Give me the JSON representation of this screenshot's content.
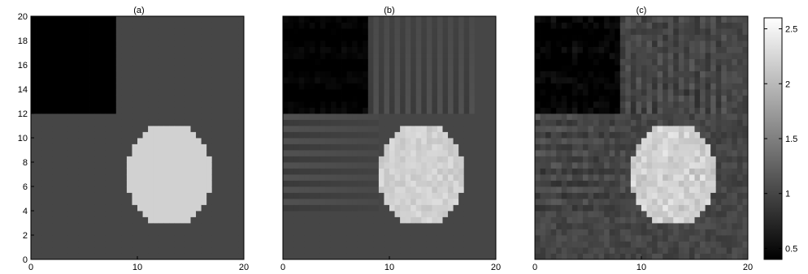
{
  "chart_data": {
    "type": "heatmap",
    "panels": [
      {
        "title": "(a)",
        "variant": "exact"
      },
      {
        "title": "(b)",
        "variant": "reconstruction"
      },
      {
        "title": "(c)",
        "variant": "noisy-reconstruction"
      }
    ],
    "grid_size": 40,
    "xlim": [
      0,
      20
    ],
    "ylim": [
      0,
      20
    ],
    "xticks": [
      "0",
      "10",
      "20"
    ],
    "yticks": [
      "0",
      "2",
      "4",
      "6",
      "8",
      "10",
      "12",
      "14",
      "16",
      "18",
      "20"
    ],
    "background_value": 1.0,
    "square_region": {
      "x": [
        0,
        8
      ],
      "y": [
        12,
        20
      ],
      "value": 0.4
    },
    "ellipse_region": {
      "cx": 13,
      "cy": 7,
      "rx": 4,
      "ry": 4.2,
      "value": 2.2
    },
    "colorbar": {
      "colormap": "gray",
      "range": [
        0.4,
        2.6
      ],
      "ticks": [
        {
          "value": 0.5,
          "label": "0.5"
        },
        {
          "value": 1,
          "label": "1"
        },
        {
          "value": 1.5,
          "label": "1.5"
        },
        {
          "value": 2,
          "label": "2"
        },
        {
          "value": 2.5,
          "label": "2.5"
        }
      ]
    }
  }
}
